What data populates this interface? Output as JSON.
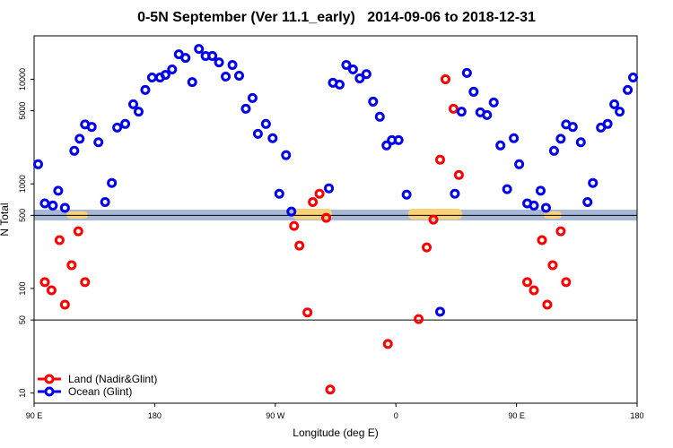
{
  "chart_data": {
    "type": "scatter",
    "title": "0-5N September (Ver 11.1_early)   2014-09-06 to 2018-12-31",
    "x_label": "Longitude (deg E)",
    "y_label": "N Total",
    "log_y": true,
    "xlim": [
      90,
      540
    ],
    "ylim": [
      8,
      26000
    ],
    "xticks": [
      {
        "value": 90,
        "label": "90 E"
      },
      {
        "value": 180,
        "label": "180"
      },
      {
        "value": 270,
        "label": "90 W"
      },
      {
        "value": 360,
        "label": "0"
      },
      {
        "value": 450,
        "label": "90 E"
      },
      {
        "value": 540,
        "label": "180"
      }
    ],
    "yticks": [
      10,
      50,
      100,
      500,
      1000,
      5000,
      10000
    ],
    "hlines": [
      500,
      50
    ],
    "legend": "bottom-left",
    "series": [
      {
        "name": "Land (Nadir&Glint)",
        "color": "#ff0000",
        "x": [
          98,
          103,
          109,
          113,
          118,
          123,
          128,
          284,
          288,
          294,
          298,
          303,
          308,
          311,
          354,
          377,
          383,
          388,
          393,
          397,
          403,
          407,
          458,
          463,
          469,
          473,
          477,
          483,
          487
        ],
        "values": [
          115,
          96,
          290,
          70,
          167,
          352,
          115,
          396,
          257,
          59,
          670,
          805,
          473,
          10.8,
          29.5,
          51,
          247,
          455,
          1700,
          10000,
          5220,
          1217,
          115,
          96,
          290,
          70,
          167,
          352,
          115
        ]
      },
      {
        "name": "Ocean (Glint)",
        "color": "#0000ee",
        "x": [
          93,
          98,
          104,
          108,
          113,
          120,
          124,
          128,
          133,
          138,
          143,
          148,
          152,
          158,
          164,
          168,
          173,
          178,
          184,
          188,
          193,
          198,
          203,
          208,
          213,
          218,
          223,
          228,
          233,
          238,
          243,
          248,
          253,
          257,
          263,
          268,
          273,
          278,
          282,
          310,
          313,
          318,
          323,
          328,
          333,
          338,
          343,
          348,
          353,
          357,
          362,
          368,
          393,
          404,
          409,
          413,
          418,
          423,
          428,
          433,
          438,
          443,
          448,
          452,
          458,
          463,
          468,
          472,
          478,
          483,
          487,
          492,
          498,
          503,
          507,
          513,
          518,
          523,
          527,
          533,
          537
        ],
        "values": [
          1540,
          650,
          620,
          860,
          590,
          2070,
          2700,
          3700,
          3500,
          2500,
          670,
          1020,
          3450,
          3740,
          5770,
          4900,
          7900,
          10400,
          10400,
          11000,
          12400,
          17300,
          16000,
          9400,
          19500,
          16700,
          16700,
          14500,
          10600,
          13700,
          10800,
          5220,
          6620,
          3010,
          3740,
          2730,
          805,
          1880,
          543,
          906,
          9250,
          8890,
          13700,
          12400,
          10200,
          11200,
          6110,
          4380,
          2330,
          2620,
          2620,
          789,
          60,
          805,
          4900,
          11500,
          7590,
          4830,
          4550,
          6000,
          2330,
          889,
          2730,
          1540,
          650,
          620,
          860,
          590,
          2070,
          2700,
          3700,
          3500,
          2500,
          670,
          1020,
          3450,
          3740,
          5770,
          4900,
          7900,
          10400
        ]
      }
    ]
  }
}
